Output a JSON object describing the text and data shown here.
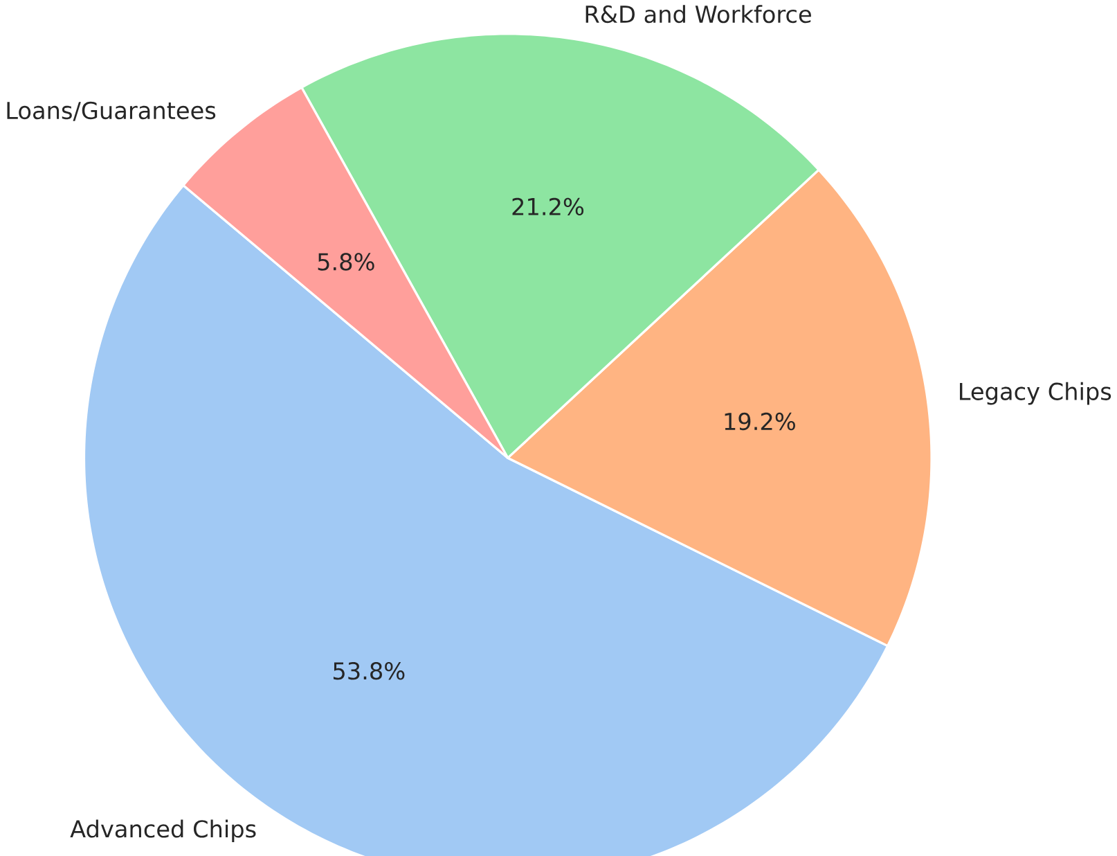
{
  "chart_data": {
    "type": "pie",
    "categories": [
      "Advanced Chips",
      "Legacy Chips",
      "R&D and Workforce",
      "Loans/Guarantees"
    ],
    "values": [
      53.8,
      19.2,
      21.2,
      5.8
    ],
    "colors": [
      "#a1c9f4",
      "#ffb482",
      "#8de5a1",
      "#ff9f9b"
    ],
    "value_labels": [
      "53.8%",
      "19.2%",
      "21.2%",
      "5.8%"
    ]
  }
}
